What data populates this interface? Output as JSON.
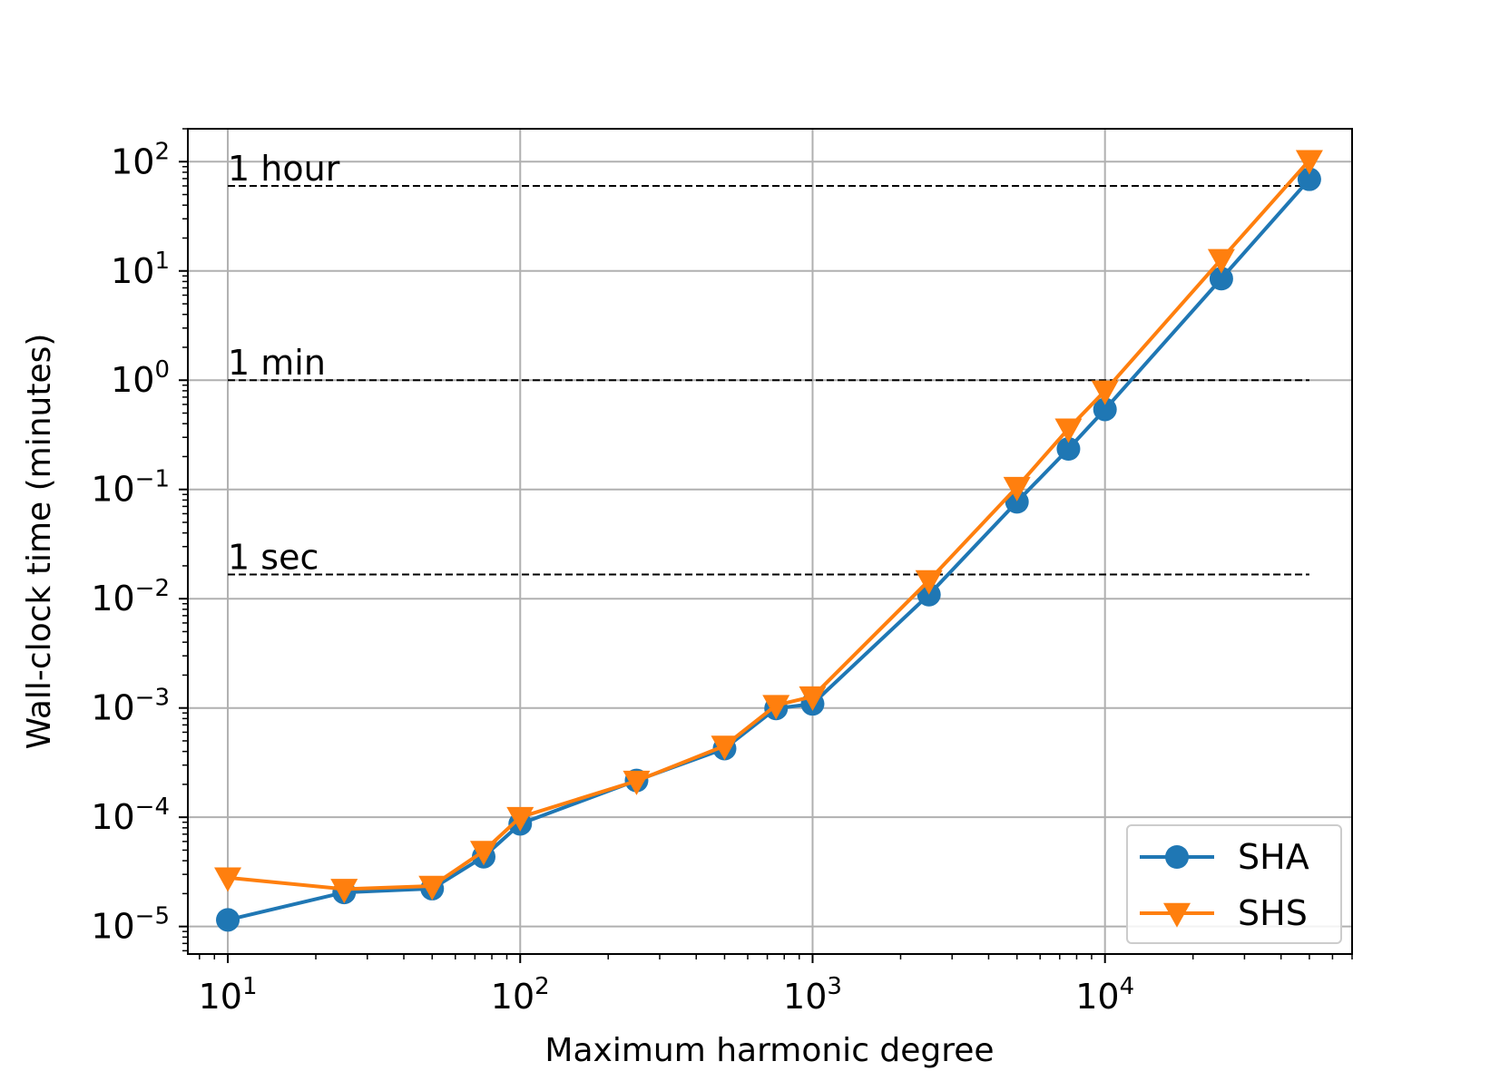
{
  "chart_data": {
    "type": "line",
    "title": "",
    "xlabel": "Maximum harmonic degree",
    "ylabel": "Wall-clock time (minutes)",
    "xscale": "log",
    "yscale": "log",
    "xlim": [
      7.3,
      70000
    ],
    "ylim": [
      5.6e-06,
      200
    ],
    "grid": true,
    "legend_position": "lower-right",
    "x_ticks": [
      {
        "value": 10,
        "base": "10",
        "exp": "1"
      },
      {
        "value": 100,
        "base": "10",
        "exp": "2"
      },
      {
        "value": 1000,
        "base": "10",
        "exp": "3"
      },
      {
        "value": 10000,
        "base": "10",
        "exp": "4"
      }
    ],
    "y_ticks": [
      {
        "value": 100,
        "base": "10",
        "exp": "2"
      },
      {
        "value": 10,
        "base": "10",
        "exp": "1"
      },
      {
        "value": 1,
        "base": "10",
        "exp": "0"
      },
      {
        "value": 0.1,
        "base": "10",
        "exp": "−1"
      },
      {
        "value": 0.01,
        "base": "10",
        "exp": "−2"
      },
      {
        "value": 0.001,
        "base": "10",
        "exp": "−3"
      },
      {
        "value": 0.0001,
        "base": "10",
        "exp": "−4"
      },
      {
        "value": 1e-05,
        "base": "10",
        "exp": "−5"
      }
    ],
    "reference_lines": [
      {
        "label": "1 hour",
        "value": 60,
        "x_range": [
          10,
          50000
        ]
      },
      {
        "label": "1 min",
        "value": 1,
        "x_range": [
          10,
          50000
        ]
      },
      {
        "label": "1 sec",
        "value": 0.016667,
        "x_range": [
          10,
          50000
        ]
      }
    ],
    "series": [
      {
        "name": "SHA",
        "color": "#1f77b4",
        "marker": "circle",
        "x": [
          10,
          25,
          50,
          75,
          100,
          250,
          500,
          750,
          1000,
          2500,
          5000,
          7500,
          10000,
          25000,
          50000
        ],
        "values": [
          1.15e-05,
          2.05e-05,
          2.22e-05,
          4.35e-05,
          8.7e-05,
          0.000217,
          0.000425,
          0.00099,
          0.00109,
          0.0109,
          0.077,
          0.235,
          0.54,
          8.5,
          69
        ]
      },
      {
        "name": "SHS",
        "color": "#ff7f0e",
        "marker": "triangle-down",
        "x": [
          10,
          25,
          50,
          75,
          100,
          250,
          500,
          750,
          1000,
          2500,
          5000,
          7500,
          10000,
          25000,
          50000
        ],
        "values": [
          2.8e-05,
          2.2e-05,
          2.35e-05,
          4.9e-05,
          0.0001,
          0.000215,
          0.00045,
          0.00106,
          0.00127,
          0.0147,
          0.105,
          0.36,
          0.8,
          12.8,
          103
        ]
      }
    ]
  }
}
